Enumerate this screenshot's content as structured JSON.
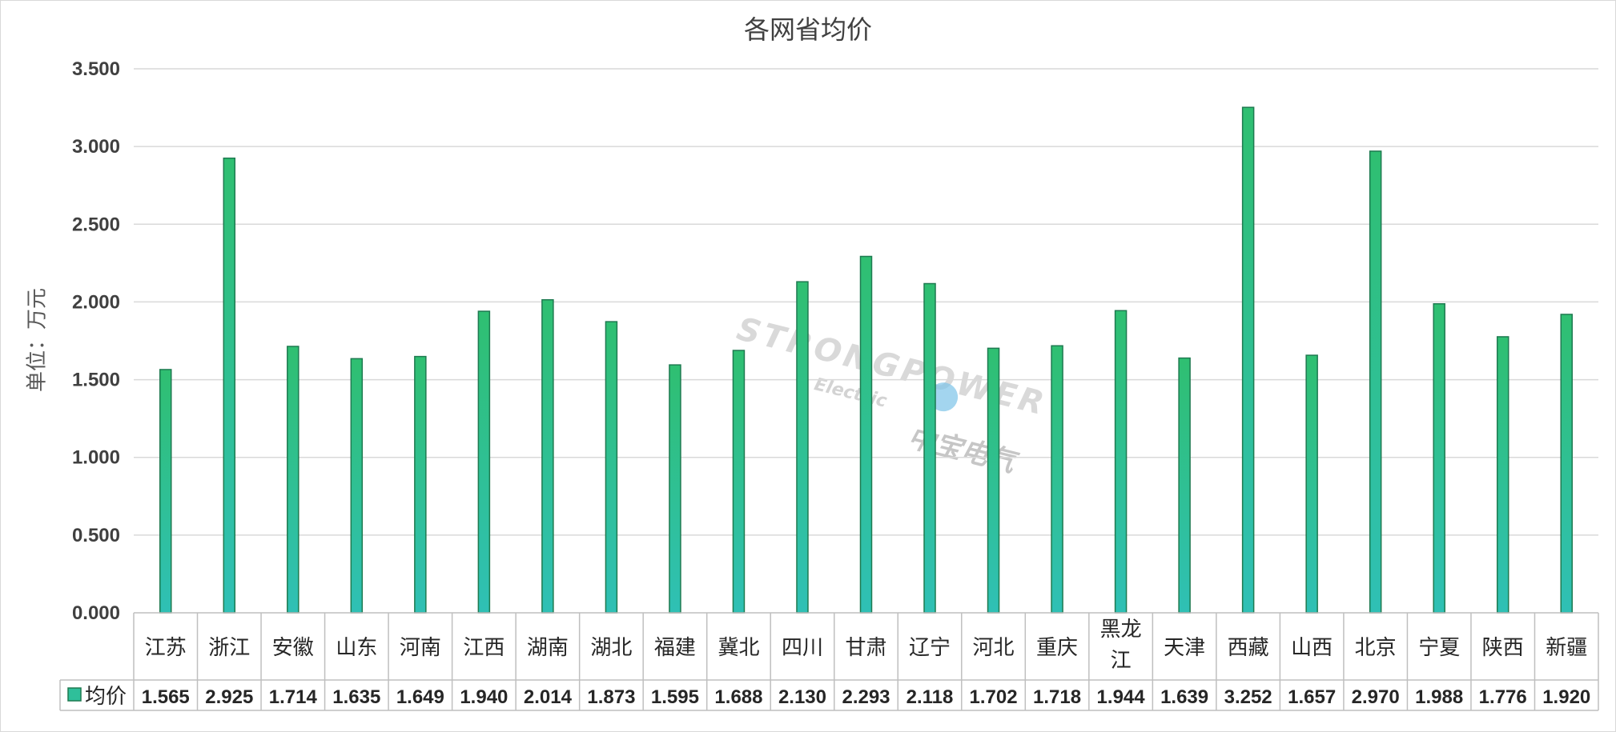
{
  "chart_data": {
    "type": "bar",
    "title": "各网省均价",
    "ylabel": "单位：万元",
    "xlabel": "",
    "ylim": [
      0,
      3.5
    ],
    "yticks": [
      "0.000",
      "0.500",
      "1.000",
      "1.500",
      "2.000",
      "2.500",
      "3.000",
      "3.500"
    ],
    "grid": true,
    "legend_placement": "data-table-left",
    "categories": [
      "江苏",
      "浙江",
      "安徽",
      "山东",
      "河南",
      "江西",
      "湖南",
      "湖北",
      "福建",
      "冀北",
      "四川",
      "甘肃",
      "辽宁",
      "河北",
      "重庆",
      "黑龙江",
      "天津",
      "西藏",
      "山西",
      "北京",
      "宁夏",
      "陕西",
      "新疆"
    ],
    "series": [
      {
        "name": "均价",
        "values": [
          1.565,
          2.925,
          1.714,
          1.635,
          1.649,
          1.94,
          2.014,
          1.873,
          1.595,
          1.688,
          2.13,
          2.293,
          2.118,
          1.702,
          1.718,
          1.944,
          1.639,
          3.252,
          1.657,
          2.97,
          1.988,
          1.776,
          1.92
        ],
        "value_labels": [
          "1.565",
          "2.925",
          "1.714",
          "1.635",
          "1.649",
          "1.940",
          "2.014",
          "1.873",
          "1.595",
          "1.688",
          "2.130",
          "2.293",
          "2.118",
          "1.702",
          "1.718",
          "1.944",
          "1.639",
          "3.252",
          "1.657",
          "2.970",
          "1.988",
          "1.776",
          "1.920"
        ],
        "color_top": "#2fbf71",
        "color_bottom": "#2fc0b5",
        "stroke": "#1e7a50"
      }
    ]
  },
  "watermark": {
    "line1": "STRONGPOWER",
    "line2": "Electric",
    "line3": "中宝电气"
  },
  "colors": {
    "grid": "#d9d9d9",
    "axis": "#bfbfbf",
    "table_border": "#bfbfbf",
    "legend_key": "#2fbf9a"
  }
}
